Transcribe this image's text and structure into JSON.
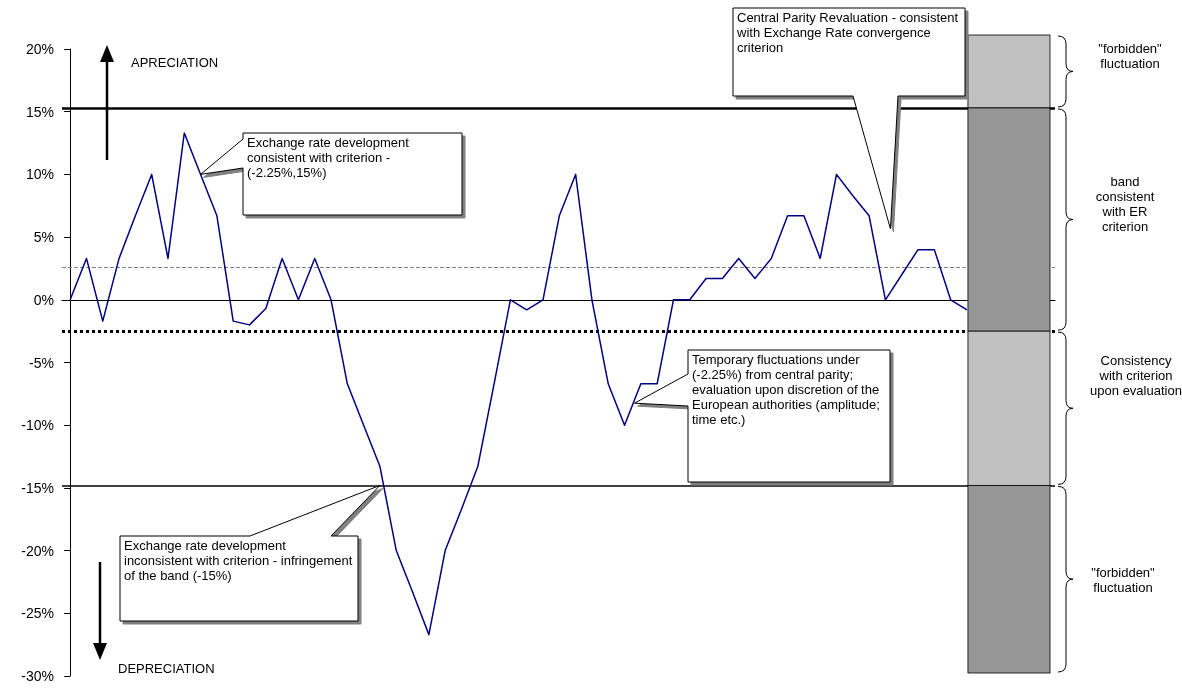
{
  "chart_data": {
    "type": "line",
    "categories": [
      null,
      null,
      null,
      null,
      null,
      null,
      null,
      null,
      null,
      null,
      null,
      null,
      null,
      null,
      null,
      null,
      null,
      null,
      null,
      null,
      null,
      null,
      null,
      null,
      null,
      null,
      null,
      null,
      null,
      null,
      null,
      null,
      null,
      null,
      null,
      null,
      null,
      null,
      null,
      null,
      null,
      null,
      null,
      null,
      null,
      null,
      null,
      null,
      null,
      null,
      null,
      null,
      null,
      null,
      null,
      null
    ],
    "series": [
      {
        "color": "#000080",
        "values": [
          0,
          3.3,
          -1.7,
          3.3,
          6.7,
          10,
          3.3,
          13.3,
          10,
          6.7,
          -1.7,
          -2,
          -0.7,
          3.3,
          0,
          3.3,
          0,
          -6.7,
          -10,
          -13.3,
          -20,
          -23.3,
          -26.7,
          -20,
          -16.7,
          -13.3,
          -6.7,
          0,
          -0.8,
          0,
          6.7,
          10,
          0,
          -6.7,
          -10,
          -6.7,
          -6.7,
          0,
          0,
          1.7,
          1.7,
          3.3,
          1.7,
          3.3,
          6.7,
          6.7,
          3.3,
          10,
          8.3,
          6.7,
          0,
          2,
          4,
          4,
          0,
          -0.8
        ]
      }
    ],
    "ylim": [
      -30,
      20
    ],
    "yticks": [
      {
        "value": -30,
        "label": "-30%"
      },
      {
        "value": -25,
        "label": "-25%"
      },
      {
        "value": -20,
        "label": "-20%"
      },
      {
        "value": -15,
        "label": "-15%"
      },
      {
        "value": -10,
        "label": "-10%"
      },
      {
        "value": -5,
        "label": "-5%"
      },
      {
        "value": 0,
        "label": "0%"
      },
      {
        "value": 5,
        "label": "5%"
      },
      {
        "value": 10,
        "label": "10%"
      },
      {
        "value": 15,
        "label": "15%"
      },
      {
        "value": 20,
        "label": "20%"
      }
    ],
    "ref_lines": [
      {
        "axis": "y",
        "value": 15.3,
        "color": "#000000",
        "line_style": "solid"
      },
      {
        "axis": "y",
        "value": 2.6,
        "color": "#808080",
        "line_style": "dashed"
      },
      {
        "axis": "y",
        "value": -2.5,
        "color": "#000000",
        "line_style": "dotted"
      },
      {
        "axis": "y",
        "value": -14.8,
        "color": "#000000",
        "line_style": "solid"
      }
    ],
    "annotations": [
      "Exchange rate development consistent with criterion - (-2.25%,15%)",
      "Exchange rate development inconsistent with criterion - infringement of the band (-15%)",
      "Temporary fluctuations under (-2.25%) from central parity; evaluation upon discretion of the European authorities (amplitude; time etc.)",
      "Central Parity Revaluation - consistent with Exchange Rate convergence criterion",
      "APRECIATION",
      "DEPRECIATION",
      "\"forbidden\" fluctuation",
      "band consistent with ER criterion",
      "Consistency with criterion upon evaluation",
      "\"forbidden\" fluctuation"
    ],
    "marker": "none",
    "grid": false,
    "tick_labels": "y"
  }
}
